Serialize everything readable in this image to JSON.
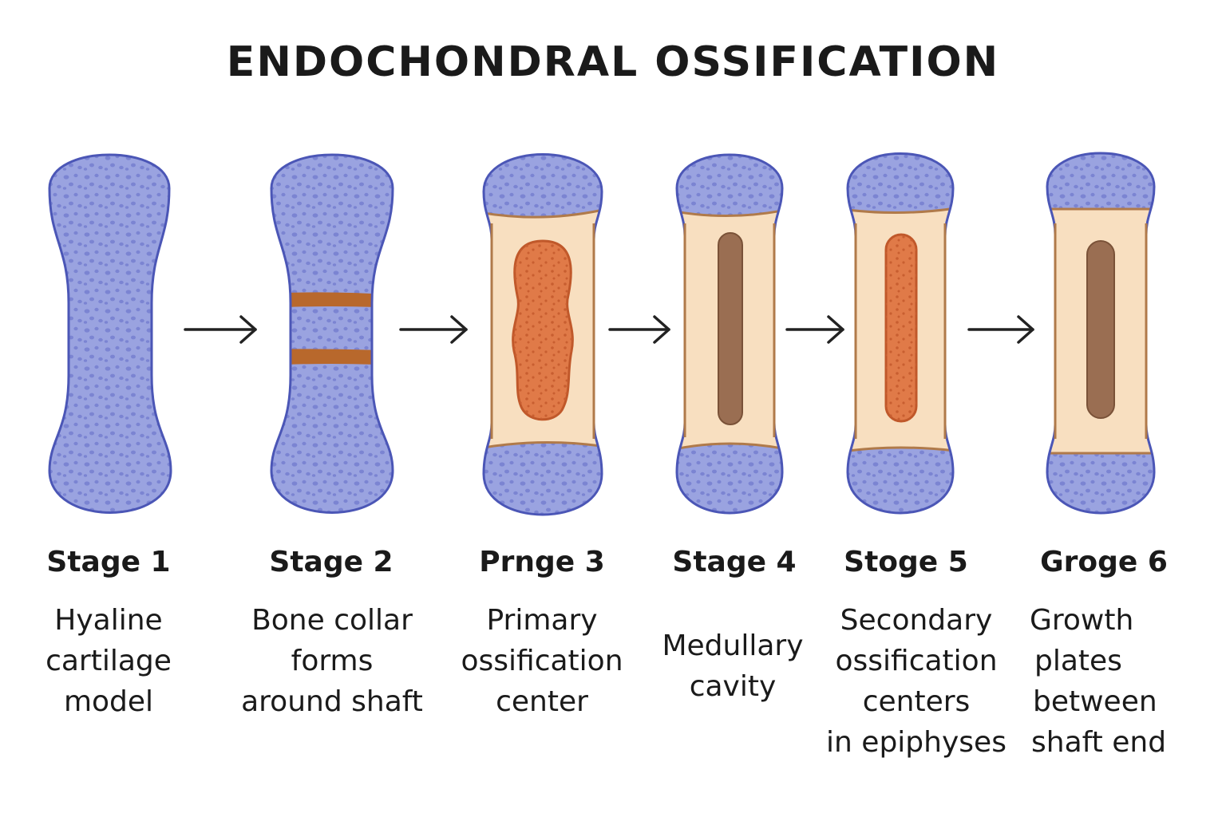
{
  "title": "ENDOCHONDRAL OSSIFICATION",
  "colors": {
    "cartilage_fill": "#9aa3e0",
    "cartilage_stroke": "#4b56b6",
    "cartilage_dots": "#7b84d2",
    "bone_fill": "#f8dfc0",
    "bone_stroke": "#b07a4a",
    "collar": "#b8682c",
    "primary_center": "#e07a48",
    "primary_center_dots": "#c85e30",
    "medullary_cavity": "#9a6e52",
    "arrow": "#222222"
  },
  "stages": [
    {
      "label": "Stage 1",
      "description": [
        "Hyaline",
        "cartilage",
        "model"
      ]
    },
    {
      "label": "Stage 2",
      "description": [
        "Bone collar",
        "forms",
        "around shaft"
      ]
    },
    {
      "label": "Prnge 3",
      "description": [
        "Primary",
        "ossification",
        "center"
      ]
    },
    {
      "label": "Stage 4",
      "description": [
        "Medullary",
        "cavity"
      ]
    },
    {
      "label": "Stoge 5",
      "description": [
        "Secondary",
        "ossification",
        "centers",
        "in epiphyses"
      ]
    },
    {
      "label": "Groge 6",
      "description": [
        "Growth",
        "plates",
        "between",
        "shaft end"
      ]
    }
  ]
}
